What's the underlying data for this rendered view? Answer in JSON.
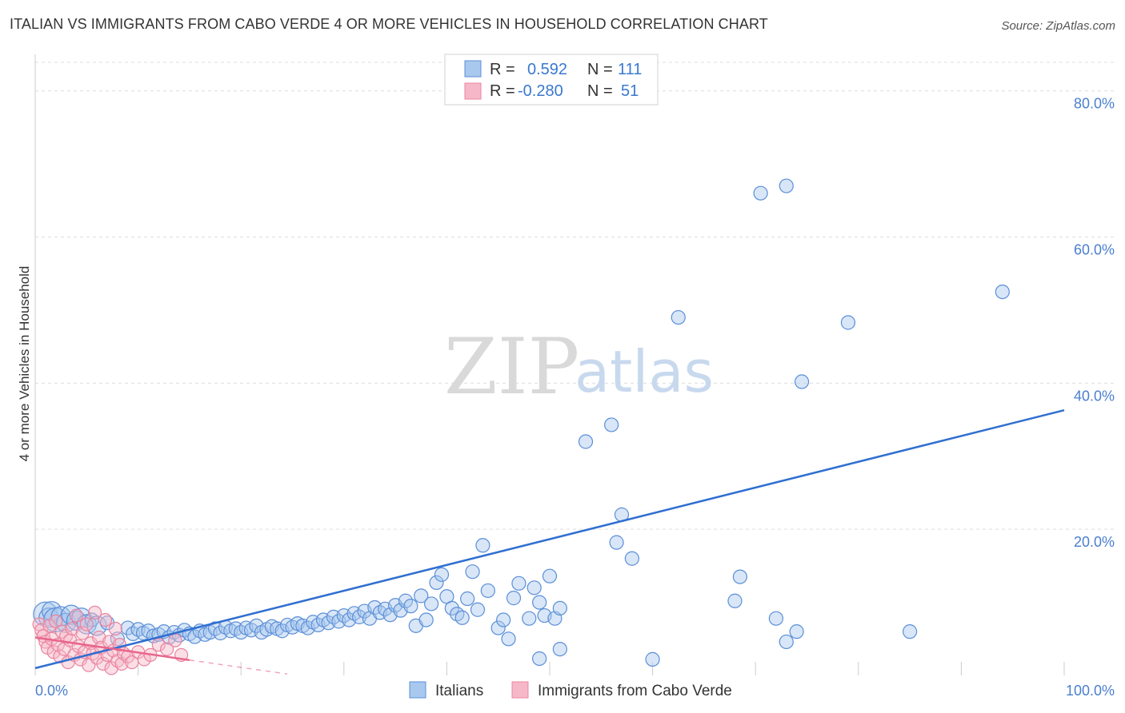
{
  "title": "ITALIAN VS IMMIGRANTS FROM CABO VERDE 4 OR MORE VEHICLES IN HOUSEHOLD CORRELATION CHART",
  "source": "Source: ZipAtlas.com",
  "watermark": {
    "zip": "ZIP",
    "atlas": "atlas"
  },
  "colors": {
    "blue_fill": "#a9c8ee",
    "blue_stroke": "#5b8fd8",
    "blue_line": "#2f6fd0",
    "pink_fill": "#f6b8c8",
    "pink_stroke": "#e9849f",
    "pink_line": "#e8668c",
    "grid": "#dddddd",
    "tick_text": "#4a7fcf"
  },
  "legend": {
    "rows": [
      {
        "r_label": "R =",
        "r_value": "0.592",
        "n_label": "N =",
        "n_value": "111"
      },
      {
        "r_label": "R =",
        "r_value": "-0.280",
        "n_label": "N =",
        "n_value": "51"
      }
    ]
  },
  "bottom_legend": [
    "Italians",
    "Immigrants from Cabo Verde"
  ],
  "chart_data": {
    "type": "scatter",
    "xlabel": "",
    "ylabel": "4 or more Vehicles in Household",
    "xlim": [
      0,
      100
    ],
    "ylim": [
      0,
      85
    ],
    "x_tick_labels": [
      "0.0%",
      "100.0%"
    ],
    "y_ticks": [
      20,
      40,
      60,
      80
    ],
    "y_tick_labels": [
      "20.0%",
      "40.0%",
      "60.0%",
      "80.0%"
    ],
    "grid": true,
    "series": [
      {
        "name": "Italians",
        "R": 0.592,
        "N": 111,
        "trend": {
          "x": [
            0,
            100
          ],
          "y": [
            1.0,
            36.3
          ]
        },
        "points": [
          [
            1.0,
            8.4,
            3
          ],
          [
            1.3,
            7.9,
            2
          ],
          [
            1.6,
            8.8,
            2
          ],
          [
            2.0,
            7.6,
            3
          ],
          [
            2.5,
            8.1,
            2
          ],
          [
            3.0,
            7.2,
            2
          ],
          [
            3.5,
            8.3,
            2
          ],
          [
            4.0,
            7.5,
            2
          ],
          [
            4.5,
            7.9,
            2
          ],
          [
            5.0,
            7.0,
            2
          ],
          [
            5.5,
            7.6,
            1
          ],
          [
            6.0,
            6.8,
            2
          ],
          [
            7.0,
            7.2,
            1
          ],
          [
            8.0,
            5.0,
            1
          ],
          [
            9.0,
            6.5,
            1
          ],
          [
            9.5,
            5.7,
            1
          ],
          [
            10.0,
            6.3,
            1
          ],
          [
            10.5,
            5.8,
            1
          ],
          [
            11.0,
            6.1,
            1
          ],
          [
            11.5,
            5.4,
            1
          ],
          [
            12.0,
            5.6,
            1
          ],
          [
            12.5,
            6.0,
            1
          ],
          [
            13.0,
            5.2,
            1
          ],
          [
            13.5,
            5.9,
            1
          ],
          [
            14.0,
            5.5,
            1
          ],
          [
            14.5,
            6.2,
            1
          ],
          [
            15.0,
            5.7,
            1
          ],
          [
            15.5,
            5.3,
            1
          ],
          [
            16.0,
            6.1,
            1
          ],
          [
            16.5,
            5.6,
            1
          ],
          [
            17.0,
            5.9,
            1
          ],
          [
            17.5,
            6.4,
            1
          ],
          [
            18.0,
            5.8,
            1
          ],
          [
            18.5,
            6.6,
            1
          ],
          [
            19.0,
            6.1,
            1
          ],
          [
            19.5,
            6.4,
            1
          ],
          [
            20.0,
            5.9,
            1
          ],
          [
            20.5,
            6.5,
            1
          ],
          [
            21.0,
            6.2,
            1
          ],
          [
            21.5,
            6.8,
            1
          ],
          [
            22.0,
            5.9,
            1
          ],
          [
            22.5,
            6.3,
            1
          ],
          [
            23.0,
            6.7,
            1
          ],
          [
            23.5,
            6.4,
            1
          ],
          [
            24.0,
            6.1,
            1
          ],
          [
            24.5,
            6.9,
            1
          ],
          [
            25.0,
            6.6,
            1
          ],
          [
            25.5,
            7.1,
            1
          ],
          [
            26.0,
            6.8,
            1
          ],
          [
            26.5,
            6.5,
            1
          ],
          [
            27.0,
            7.3,
            1
          ],
          [
            27.5,
            6.9,
            1
          ],
          [
            28.0,
            7.6,
            1
          ],
          [
            28.5,
            7.2,
            1
          ],
          [
            29.0,
            8.0,
            1
          ],
          [
            29.5,
            7.4,
            1
          ],
          [
            30.0,
            8.2,
            1
          ],
          [
            30.5,
            7.6,
            1
          ],
          [
            31.0,
            8.5,
            1
          ],
          [
            31.5,
            8.0,
            1
          ],
          [
            32.0,
            8.8,
            1
          ],
          [
            32.5,
            7.8,
            1
          ],
          [
            33.0,
            9.3,
            1
          ],
          [
            33.5,
            8.6,
            1
          ],
          [
            34.0,
            9.1,
            1
          ],
          [
            34.5,
            8.3,
            1
          ],
          [
            35.0,
            9.6,
            1
          ],
          [
            35.5,
            8.9,
            1
          ],
          [
            36.0,
            10.2,
            1
          ],
          [
            36.5,
            9.5,
            1
          ],
          [
            37.0,
            6.8,
            1
          ],
          [
            37.5,
            10.9,
            1
          ],
          [
            38.0,
            7.6,
            1
          ],
          [
            38.5,
            9.8,
            1
          ],
          [
            39.0,
            12.7,
            1
          ],
          [
            39.5,
            13.8,
            1
          ],
          [
            40.0,
            10.8,
            1
          ],
          [
            40.5,
            9.2,
            1
          ],
          [
            41.0,
            8.4,
            1
          ],
          [
            41.5,
            7.9,
            1
          ],
          [
            42.0,
            10.5,
            1
          ],
          [
            42.5,
            14.2,
            1
          ],
          [
            43.0,
            9.0,
            1
          ],
          [
            43.5,
            17.8,
            1
          ],
          [
            44.0,
            11.6,
            1
          ],
          [
            45.0,
            6.5,
            1
          ],
          [
            45.5,
            7.6,
            1
          ],
          [
            46.0,
            5.0,
            1
          ],
          [
            46.5,
            10.6,
            1
          ],
          [
            47.0,
            12.6,
            1
          ],
          [
            48.0,
            7.8,
            1
          ],
          [
            48.5,
            12.0,
            1
          ],
          [
            49.0,
            10.0,
            1
          ],
          [
            49.5,
            8.2,
            1
          ],
          [
            50.0,
            13.6,
            1
          ],
          [
            50.5,
            7.8,
            1
          ],
          [
            51.0,
            9.2,
            1
          ],
          [
            53.5,
            32.0,
            1
          ],
          [
            56.0,
            34.3,
            1
          ],
          [
            56.5,
            18.2,
            1
          ],
          [
            57.0,
            22.0,
            1
          ],
          [
            62.5,
            49.0,
            1
          ],
          [
            68.0,
            10.2,
            1
          ],
          [
            68.5,
            13.5,
            1
          ],
          [
            72.0,
            7.8,
            1
          ],
          [
            73.0,
            4.6,
            1
          ],
          [
            74.0,
            6.0,
            1
          ],
          [
            85.0,
            6.0,
            1
          ],
          [
            70.5,
            66.0,
            1
          ],
          [
            73.0,
            67.0,
            1
          ],
          [
            74.5,
            40.2,
            1
          ],
          [
            79.0,
            48.3,
            1
          ],
          [
            94.0,
            52.5,
            1
          ],
          [
            49.0,
            2.3,
            1
          ],
          [
            51.0,
            3.6,
            1
          ],
          [
            58.0,
            16.0,
            1
          ],
          [
            60.0,
            2.2,
            1
          ]
        ]
      },
      {
        "name": "Immigrants from Cabo Verde",
        "R": -0.28,
        "N": 51,
        "trend": {
          "x": [
            0,
            15
          ],
          "y": [
            5.2,
            2.1
          ]
        },
        "trend_dashed": {
          "x": [
            15,
            24.5
          ],
          "y": [
            2.1,
            0.2
          ]
        },
        "points": [
          [
            0.4,
            7.0,
            1
          ],
          [
            0.6,
            6.2,
            1
          ],
          [
            0.8,
            5.4,
            1
          ],
          [
            1.0,
            4.6,
            1
          ],
          [
            1.2,
            3.8,
            1
          ],
          [
            1.4,
            6.8,
            1
          ],
          [
            1.6,
            5.0,
            1
          ],
          [
            1.8,
            3.2,
            1
          ],
          [
            2.0,
            7.4,
            1
          ],
          [
            2.2,
            4.2,
            1
          ],
          [
            2.4,
            2.6,
            1
          ],
          [
            2.6,
            6.0,
            1
          ],
          [
            2.8,
            3.6,
            1
          ],
          [
            3.0,
            5.4,
            1
          ],
          [
            3.2,
            1.8,
            1
          ],
          [
            3.4,
            4.8,
            1
          ],
          [
            3.6,
            6.4,
            1
          ],
          [
            3.8,
            2.8,
            1
          ],
          [
            4.0,
            8.2,
            1
          ],
          [
            4.2,
            4.0,
            1
          ],
          [
            4.4,
            2.2,
            1
          ],
          [
            4.6,
            5.8,
            1
          ],
          [
            4.8,
            3.2,
            1
          ],
          [
            5.0,
            7.0,
            1
          ],
          [
            5.2,
            1.4,
            1
          ],
          [
            5.4,
            4.4,
            1
          ],
          [
            5.6,
            3.0,
            1
          ],
          [
            5.8,
            8.6,
            1
          ],
          [
            6.0,
            2.4,
            1
          ],
          [
            6.2,
            5.2,
            1
          ],
          [
            6.4,
            3.8,
            1
          ],
          [
            6.6,
            1.6,
            1
          ],
          [
            6.8,
            7.6,
            1
          ],
          [
            7.0,
            2.8,
            1
          ],
          [
            7.2,
            4.6,
            1
          ],
          [
            7.4,
            1.0,
            1
          ],
          [
            7.6,
            3.4,
            1
          ],
          [
            7.8,
            6.4,
            1
          ],
          [
            8.0,
            2.0,
            1
          ],
          [
            8.2,
            4.2,
            1
          ],
          [
            8.4,
            1.6,
            1
          ],
          [
            8.6,
            3.0,
            1
          ],
          [
            9.0,
            2.6,
            1
          ],
          [
            9.4,
            1.8,
            1
          ],
          [
            10.0,
            3.2,
            1
          ],
          [
            10.6,
            2.2,
            1
          ],
          [
            11.2,
            2.8,
            1
          ],
          [
            12.0,
            4.2,
            1
          ],
          [
            12.8,
            3.6,
            1
          ],
          [
            13.6,
            4.8,
            1
          ],
          [
            14.2,
            2.8,
            1
          ]
        ]
      }
    ]
  }
}
